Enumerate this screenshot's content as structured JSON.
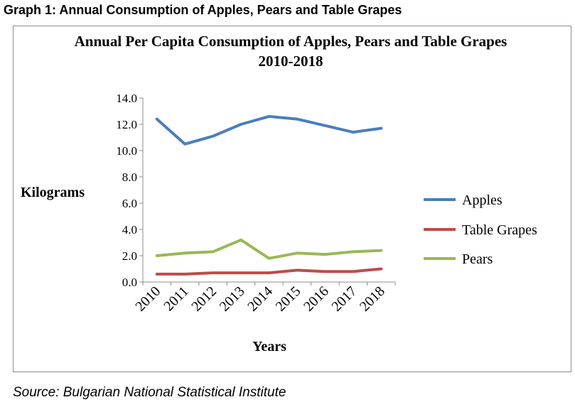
{
  "page": {
    "heading": "Graph 1: Annual Consumption of Apples, Pears and Table Grapes",
    "source": "Source: Bulgarian National Statistical Institute"
  },
  "chart_data": {
    "type": "line",
    "title": "Annual Per Capita Consumption of Apples, Pears and Table Grapes",
    "subtitle": "2010-2018",
    "xlabel": "Years",
    "ylabel": "Kilograms",
    "categories": [
      "2010",
      "2011",
      "2012",
      "2013",
      "2014",
      "2015",
      "2016",
      "2017",
      "2018"
    ],
    "ylim": [
      0,
      14
    ],
    "yticks": [
      "0.0",
      "2.0",
      "4.0",
      "6.0",
      "8.0",
      "10.0",
      "12.0",
      "14.0"
    ],
    "grid": false,
    "legend_position": "right",
    "series": [
      {
        "name": "Apples",
        "color": "#4a7ebb",
        "values": [
          12.4,
          10.5,
          11.1,
          12.0,
          12.6,
          12.4,
          11.9,
          11.4,
          11.7
        ]
      },
      {
        "name": "Table Grapes",
        "color": "#be4b48",
        "values": [
          0.6,
          0.6,
          0.7,
          0.7,
          0.7,
          0.9,
          0.8,
          0.8,
          1.0
        ]
      },
      {
        "name": "Pears",
        "color": "#98b954",
        "values": [
          2.0,
          2.2,
          2.3,
          3.2,
          1.8,
          2.2,
          2.1,
          2.3,
          2.4
        ]
      }
    ]
  }
}
